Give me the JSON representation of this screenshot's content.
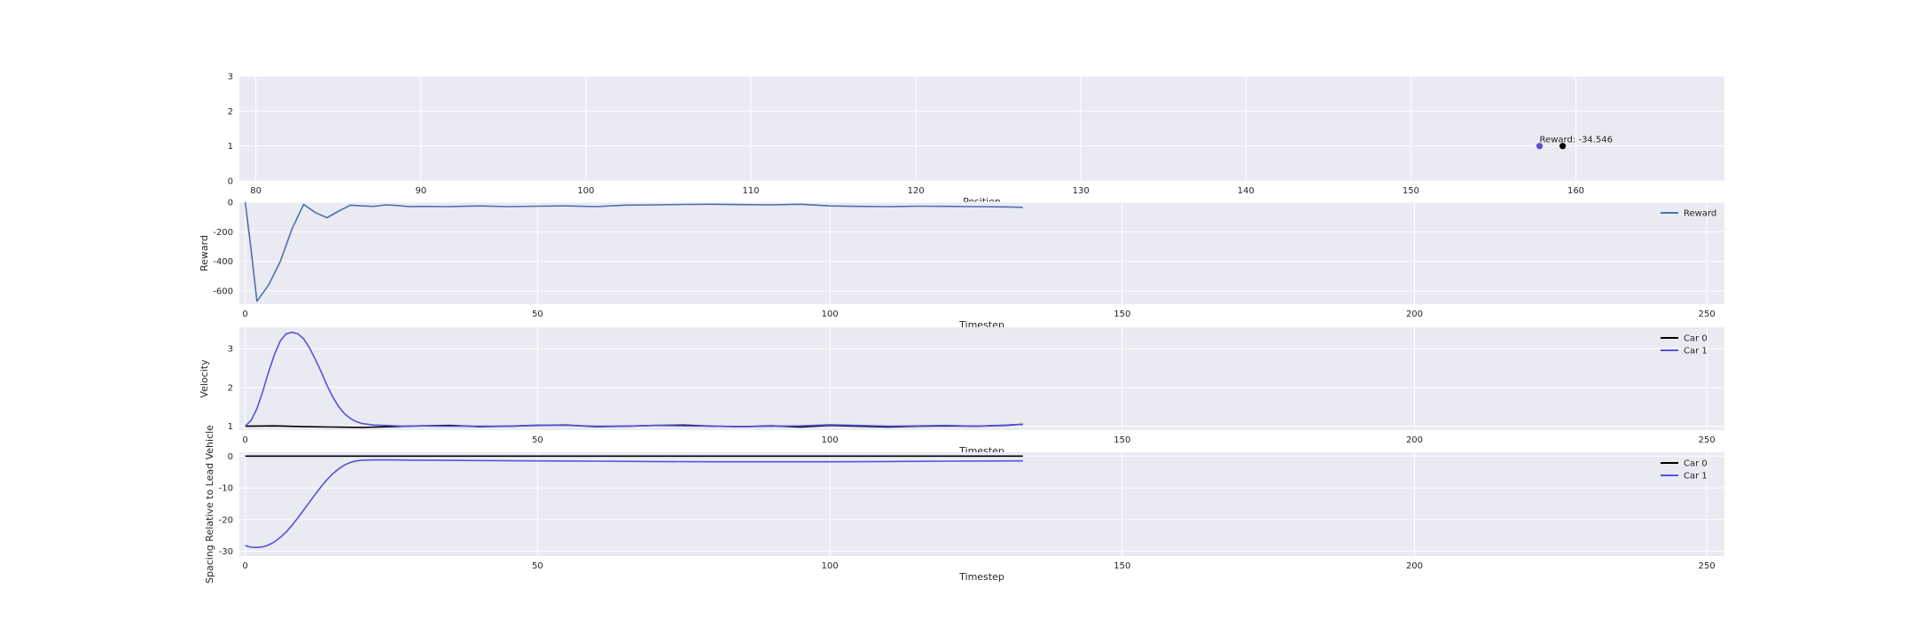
{
  "chart_data": [
    {
      "type": "scatter",
      "xlabel": "Position",
      "ylabel": "",
      "xlim": [
        79,
        169
      ],
      "ylim": [
        0,
        3
      ],
      "xticks": [
        "80",
        "90",
        "100",
        "110",
        "120",
        "130",
        "140",
        "150",
        "160"
      ],
      "yticks": [
        "0",
        "1",
        "2",
        "3"
      ],
      "grid": true,
      "points": [
        {
          "x": 157.8,
          "y": 1,
          "color": "#5b4fdc"
        },
        {
          "x": 159.2,
          "y": 1,
          "color": "#000000"
        }
      ],
      "annotation": {
        "text": "Reward: -34.546",
        "x": 157.8,
        "y": 1
      }
    },
    {
      "type": "line",
      "xlabel": "Timestep",
      "ylabel": "Reward",
      "xlim": [
        -1,
        253
      ],
      "ylim": [
        -690,
        0
      ],
      "xticks": [
        "0",
        "50",
        "100",
        "150",
        "200",
        "250"
      ],
      "yticks": [
        "-600",
        "-400",
        "-200",
        "0"
      ],
      "grid": true,
      "legend": "top-right",
      "series": [
        {
          "name": "Reward",
          "color": "#4c72b0",
          "x": [
            0,
            1,
            2,
            4,
            6,
            8,
            10,
            12,
            14,
            16,
            18,
            20,
            22,
            24,
            26,
            28,
            30,
            35,
            40,
            45,
            50,
            55,
            60,
            65,
            70,
            75,
            80,
            85,
            90,
            95,
            100,
            105,
            110,
            115,
            120,
            125,
            130,
            133
          ],
          "values": [
            0,
            -320,
            -670,
            -560,
            -400,
            -180,
            -15,
            -70,
            -105,
            -60,
            -20,
            -25,
            -28,
            -18,
            -22,
            -30,
            -28,
            -30,
            -25,
            -30,
            -27,
            -25,
            -30,
            -20,
            -18,
            -15,
            -14,
            -16,
            -18,
            -14,
            -25,
            -28,
            -30,
            -27,
            -28,
            -30,
            -32,
            -34.5
          ]
        }
      ]
    },
    {
      "type": "line",
      "xlabel": "Timestep",
      "ylabel": "Velocity",
      "xlim": [
        -1,
        253
      ],
      "ylim": [
        0.9,
        3.55
      ],
      "xticks": [
        "0",
        "50",
        "100",
        "150",
        "200",
        "250"
      ],
      "yticks": [
        "1",
        "2",
        "3"
      ],
      "grid": true,
      "legend": "top-right",
      "series": [
        {
          "name": "Car 0",
          "color": "#000000",
          "x": [
            0,
            5,
            10,
            15,
            20,
            25,
            30,
            35,
            40,
            45,
            50,
            55,
            60,
            65,
            70,
            75,
            80,
            85,
            90,
            95,
            100,
            105,
            110,
            115,
            120,
            125,
            130,
            133
          ],
          "values": [
            1.0,
            1.01,
            0.99,
            0.98,
            0.97,
            0.99,
            1.01,
            1.02,
            0.99,
            1.0,
            1.02,
            1.03,
            0.99,
            1.0,
            1.02,
            1.03,
            1.0,
            0.99,
            1.01,
            0.98,
            1.02,
            1.0,
            0.98,
            1.0,
            1.01,
            1.0,
            1.02,
            1.05
          ]
        },
        {
          "name": "Car 1",
          "color": "#5b4fdc",
          "x": [
            0,
            1,
            2,
            3,
            4,
            5,
            6,
            7,
            8,
            9,
            10,
            11,
            12,
            13,
            14,
            15,
            16,
            17,
            18,
            19,
            20,
            22,
            24,
            27,
            30,
            35,
            40,
            45,
            50,
            55,
            60,
            65,
            70,
            75,
            80,
            85,
            90,
            95,
            100,
            105,
            110,
            115,
            120,
            125,
            130,
            133
          ],
          "values": [
            1.0,
            1.15,
            1.45,
            1.9,
            2.4,
            2.85,
            3.2,
            3.38,
            3.42,
            3.38,
            3.25,
            3.02,
            2.72,
            2.4,
            2.05,
            1.75,
            1.5,
            1.32,
            1.2,
            1.12,
            1.07,
            1.03,
            1.02,
            1.0,
            1.01,
            1.0,
            1.0,
            1.0,
            1.03,
            1.02,
            1.0,
            1.0,
            1.02,
            1.01,
            1.0,
            0.99,
            1.0,
            1.01,
            1.04,
            1.02,
            1.0,
            1.01,
            1.02,
            1.0,
            1.03,
            1.05
          ]
        }
      ]
    },
    {
      "type": "line",
      "xlabel": "Timestep",
      "ylabel": "Spacing Relative to Lead Vehicle",
      "xlim": [
        -1,
        253
      ],
      "ylim": [
        -31.5,
        1.2
      ],
      "xticks": [
        "0",
        "50",
        "100",
        "150",
        "200",
        "250"
      ],
      "yticks": [
        "-30",
        "-20",
        "-10",
        "0"
      ],
      "grid": true,
      "legend": "top-right",
      "series": [
        {
          "name": "Car 0",
          "color": "#000000",
          "x": [
            0,
            133
          ],
          "values": [
            0,
            0
          ]
        },
        {
          "name": "Car 1",
          "color": "#5b4fdc",
          "x": [
            0,
            1,
            2,
            3,
            4,
            5,
            6,
            7,
            8,
            9,
            10,
            11,
            12,
            13,
            14,
            15,
            16,
            17,
            18,
            19,
            20,
            22,
            25,
            30,
            40,
            50,
            60,
            70,
            80,
            90,
            100,
            110,
            120,
            133
          ],
          "values": [
            -28.2,
            -28.7,
            -28.8,
            -28.6,
            -28.0,
            -27.0,
            -25.6,
            -23.9,
            -21.8,
            -19.5,
            -17.0,
            -14.5,
            -12.0,
            -9.6,
            -7.4,
            -5.5,
            -4.0,
            -2.8,
            -2.0,
            -1.5,
            -1.3,
            -1.2,
            -1.2,
            -1.3,
            -1.4,
            -1.5,
            -1.6,
            -1.7,
            -1.8,
            -1.8,
            -1.8,
            -1.7,
            -1.6,
            -1.5
          ]
        }
      ]
    }
  ]
}
